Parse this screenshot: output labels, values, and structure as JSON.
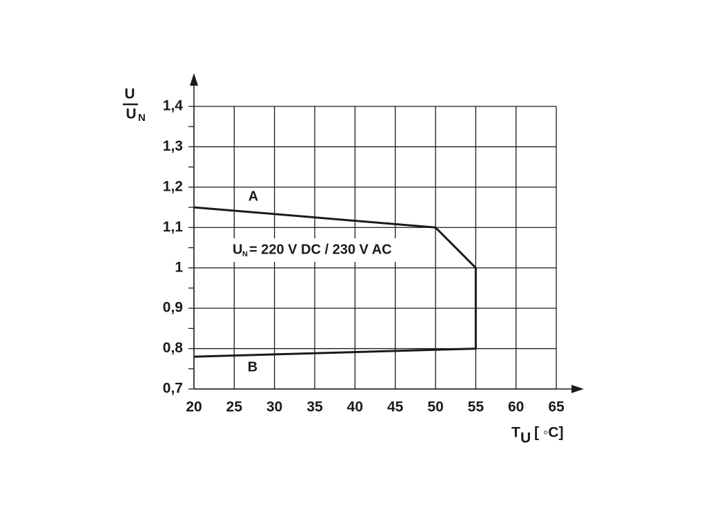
{
  "chart_data": {
    "type": "line",
    "x_label": {
      "main": "T",
      "subscript": "U",
      "unit": "[ ◦C]"
    },
    "y_label": {
      "top": "U",
      "bottom": "U",
      "subscript": "N"
    },
    "note": {
      "main": "U",
      "subscript": "N",
      "rest": "= 220 V DC / 230 V AC"
    },
    "annotations": [
      "A",
      "B"
    ],
    "x": [
      20,
      50,
      55,
      55,
      20
    ],
    "series": [
      {
        "values": [
          1.15,
          1.1,
          1.0,
          0.8,
          0.78
        ],
        "color": "#1a1a1a"
      }
    ],
    "xlim": [
      20,
      65
    ],
    "xticks": [
      20,
      25,
      30,
      35,
      40,
      45,
      50,
      55,
      60,
      65
    ],
    "ylim": [
      0.7,
      1.4
    ],
    "yticks": [
      {
        "value": 0.7,
        "label": "0,7"
      },
      {
        "value": 0.8,
        "label": "0,8"
      },
      {
        "value": 0.9,
        "label": "0,9"
      },
      1,
      {
        "value": 1.1,
        "label": "1,1"
      },
      {
        "value": 1.2,
        "label": "1,2"
      },
      {
        "value": 1.3,
        "label": "1,3"
      },
      {
        "value": 1.4,
        "label": "1,4"
      }
    ],
    "yminorticks": [
      0.75,
      0.85,
      0.95,
      1.05,
      1.15,
      1.25,
      1.35
    ],
    "grid": true
  }
}
